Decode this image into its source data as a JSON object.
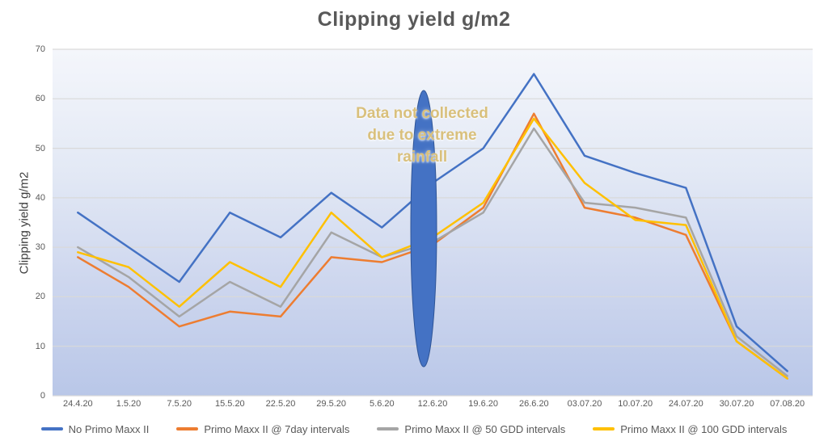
{
  "chart_data": {
    "type": "line",
    "title": "Clipping yield g/m2",
    "ylabel": "Clipping yield g/m2",
    "xlabel": "",
    "ylim": [
      0,
      70
    ],
    "yticks": [
      0,
      10,
      20,
      30,
      40,
      50,
      60,
      70
    ],
    "grid": true,
    "legend_position": "bottom",
    "categories": [
      "24.4.20",
      "1.5.20",
      "7.5.20",
      "15.5.20",
      "22.5.20",
      "29.5.20",
      "5.6.20",
      "12.6.20",
      "19.6.20",
      "26.6.20",
      "03.07.20",
      "10.07.20",
      "24.07.20",
      "30.07.20",
      "07.08.20"
    ],
    "series": [
      {
        "name": "No Primo Maxx II",
        "color": "#4472C4",
        "values": [
          37,
          30,
          23,
          37,
          32,
          41,
          34,
          43,
          50,
          65,
          48.5,
          45,
          42,
          14,
          5
        ]
      },
      {
        "name": "Primo Maxx II @ 7day intervals",
        "color": "#ED7D31",
        "values": [
          28,
          22,
          14,
          17,
          16,
          28,
          27,
          30.5,
          38,
          57,
          38,
          36,
          32.5,
          11,
          3.5
        ]
      },
      {
        "name": "Primo Maxx II @ 50 GDD intervals",
        "color": "#A5A5A5",
        "values": [
          30,
          24,
          16,
          23,
          18,
          33,
          28,
          31,
          37,
          54,
          39,
          38,
          36,
          12,
          4
        ]
      },
      {
        "name": "Primo Maxx II @ 100 GDD intervals",
        "color": "#FFC000",
        "values": [
          29,
          26,
          18,
          27,
          22,
          37,
          28,
          32,
          39,
          56,
          43,
          35.5,
          34.5,
          11,
          3.5
        ]
      }
    ],
    "annotation": {
      "lines": [
        "Data not collected",
        "due to extreme",
        "rainfall"
      ],
      "text_color": "#D9C07C",
      "ellipse_color": "#4472C4",
      "ellipse_border_color": "#2F5597",
      "covers_category": "12.6.20"
    },
    "colors": {
      "title": "#595959",
      "axis_labels": "#595959",
      "gridline": "#D9D9D9",
      "plot_bg_top": "#F4F6FB",
      "plot_bg_bottom": "#B9C7E8"
    }
  }
}
